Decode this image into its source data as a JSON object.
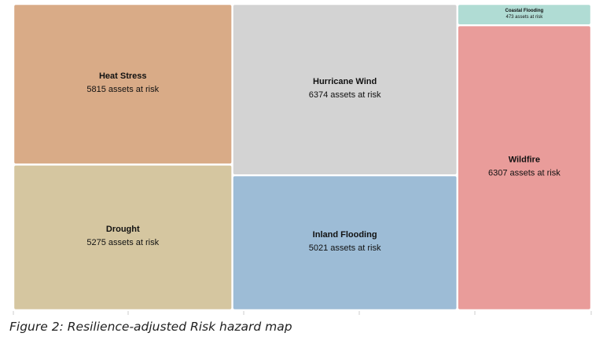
{
  "chart_data": {
    "type": "treemap",
    "value_suffix": "assets at risk",
    "items": [
      {
        "name": "Heat Stress",
        "value": 5815,
        "color": "#d9ab87"
      },
      {
        "name": "Drought",
        "value": 5275,
        "color": "#d5c6a0"
      },
      {
        "name": "Hurricane Wind",
        "value": 6374,
        "color": "#d3d3d3"
      },
      {
        "name": "Inland Flooding",
        "value": 5021,
        "color": "#9dbcd6"
      },
      {
        "name": "Coastal Flooding",
        "value": 473,
        "color": "#b0dcd4"
      },
      {
        "name": "Wildfire",
        "value": 6307,
        "color": "#e99c9a"
      }
    ]
  },
  "caption": "Figure 2: Resilience-adjusted Risk hazard map"
}
